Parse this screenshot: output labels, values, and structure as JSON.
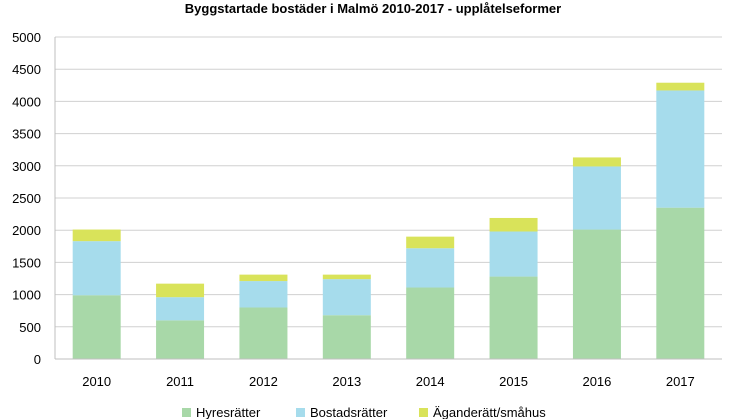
{
  "chart_data": {
    "type": "bar",
    "stacked": true,
    "title": "Byggstartade bostäder i Malmö 2010-2017 - upplåtelseformer",
    "xlabel": "",
    "ylabel": "",
    "categories": [
      "2010",
      "2011",
      "2012",
      "2013",
      "2014",
      "2015",
      "2016",
      "2017"
    ],
    "ylim": [
      0,
      5000
    ],
    "yticks": [
      0,
      500,
      1000,
      1500,
      2000,
      2500,
      3000,
      3500,
      4000,
      4500,
      5000
    ],
    "grid": true,
    "legend_position": "bottom",
    "series": [
      {
        "name": "Hyresrätter",
        "color": "#a8d8a8",
        "values": [
          990,
          600,
          800,
          680,
          1110,
          1280,
          2010,
          2350
        ]
      },
      {
        "name": "Bostadsrätter",
        "color": "#a6dcec",
        "values": [
          840,
          360,
          410,
          560,
          610,
          700,
          980,
          1820
        ]
      },
      {
        "name": "Äganderätt/småhus",
        "color": "#d9e35a",
        "values": [
          180,
          210,
          100,
          70,
          180,
          210,
          140,
          120
        ]
      }
    ]
  }
}
